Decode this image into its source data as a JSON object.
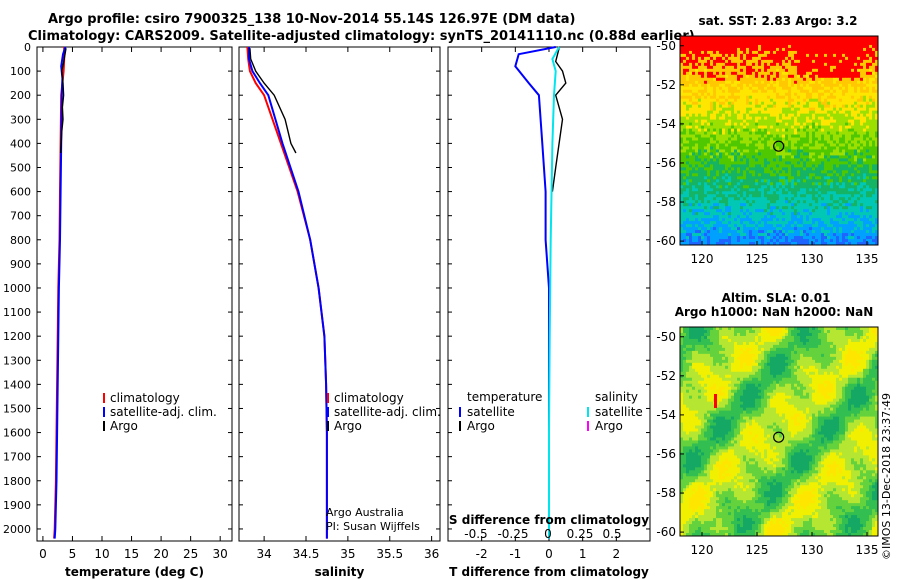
{
  "header": {
    "title_line1": "Argo profile: csiro 7900325_138 10-Nov-2014 55.14S 126.97E (DM data)",
    "title_line2": "Climatology: CARS2009. Satellite-adjusted climatology: synTS_20141110.nc (0.88d earlier)"
  },
  "colors": {
    "climatology": "#ff0000",
    "satellite": "#0000ff",
    "argo": "#000000",
    "satellite_salinity": "#00e5ee",
    "argo_salinity": "#ff00ff"
  },
  "chart_data": [
    {
      "type": "line",
      "panel": "temperature",
      "xlabel": "temperature (deg C)",
      "xlim": [
        -1,
        32
      ],
      "xticks": [
        0,
        5,
        10,
        15,
        20,
        25,
        30
      ],
      "ylim": [
        2050,
        0
      ],
      "yticks": [
        0,
        100,
        200,
        300,
        400,
        500,
        600,
        700,
        800,
        900,
        1000,
        1100,
        1200,
        1300,
        1400,
        1500,
        1600,
        1700,
        1800,
        1900,
        2000
      ],
      "legend": [
        "climatology",
        "satellite-adj. clim.",
        "Argo"
      ],
      "series": [
        {
          "name": "climatology",
          "color": "#ff0000",
          "x": [
            3.6,
            3.6,
            3.5,
            3.3,
            3.1,
            3.0,
            2.9,
            2.8,
            2.6,
            2.5,
            2.4,
            2.3,
            2.2,
            2.1,
            2.0,
            1.9
          ],
          "y": [
            0,
            50,
            100,
            150,
            200,
            400,
            600,
            800,
            1000,
            1200,
            1400,
            1600,
            1800,
            1900,
            2000,
            2040
          ]
        },
        {
          "name": "satellite-adj. clim.",
          "color": "#0000ff",
          "x": [
            3.8,
            3.4,
            3.1,
            3.3,
            3.2,
            3.1,
            3.0,
            2.9,
            2.7,
            2.6,
            2.5,
            2.4,
            2.3,
            2.2,
            2.1,
            2.0
          ],
          "y": [
            0,
            30,
            80,
            130,
            200,
            400,
            600,
            800,
            1000,
            1200,
            1400,
            1600,
            1800,
            1900,
            2000,
            2040
          ]
        },
        {
          "name": "Argo",
          "color": "#000000",
          "x": [
            3.9,
            3.6,
            3.2,
            3.4,
            3.5,
            3.3,
            3.4,
            3.2,
            3.1,
            3.0
          ],
          "y": [
            5,
            50,
            100,
            150,
            200,
            250,
            300,
            350,
            400,
            440
          ]
        }
      ]
    },
    {
      "type": "line",
      "panel": "salinity",
      "xlabel": "salinity",
      "xlim": [
        33.7,
        36.1
      ],
      "xticks": [
        34,
        34.5,
        35,
        35.5,
        36
      ],
      "ylim": [
        2050,
        0
      ],
      "legend": [
        "climatology",
        "satellite-adj. clim.",
        "Argo"
      ],
      "annotations": [
        "Argo Australia",
        "PI: Susan Wijffels"
      ],
      "series": [
        {
          "name": "climatology",
          "color": "#ff0000",
          "x": [
            33.8,
            33.81,
            33.83,
            33.9,
            34.0,
            34.2,
            34.4,
            34.55,
            34.65,
            34.72,
            34.74,
            34.75,
            34.75,
            34.75
          ],
          "y": [
            0,
            50,
            100,
            150,
            200,
            400,
            600,
            800,
            1000,
            1200,
            1400,
            1600,
            1800,
            2040
          ]
        },
        {
          "name": "satellite-adj. clim.",
          "color": "#0000ff",
          "x": [
            33.82,
            33.82,
            33.86,
            33.95,
            34.05,
            34.22,
            34.41,
            34.55,
            34.65,
            34.72,
            34.74,
            34.75,
            34.75,
            34.75
          ],
          "y": [
            0,
            50,
            100,
            150,
            200,
            400,
            600,
            800,
            1000,
            1200,
            1400,
            1600,
            1800,
            2040
          ]
        },
        {
          "name": "Argo",
          "color": "#000000",
          "x": [
            33.83,
            33.84,
            33.9,
            34.0,
            34.12,
            34.25,
            34.32,
            34.38
          ],
          "y": [
            5,
            50,
            100,
            150,
            200,
            300,
            400,
            440
          ]
        }
      ]
    },
    {
      "type": "line",
      "panel": "difference",
      "xlabel": "T difference from climatology",
      "xlabel_top": "S difference from climatology",
      "xlim": [
        -3,
        3
      ],
      "xticks": [
        -2,
        -1,
        0,
        1,
        2
      ],
      "xticklabels_top": [
        "-0.5",
        "-0.25",
        "0",
        "0.25",
        "0.5"
      ],
      "ylim": [
        2050,
        0
      ],
      "legend_left_title": "temperature",
      "legend_left": [
        "satellite",
        "Argo"
      ],
      "legend_right_title": "salinity",
      "legend_right": [
        "satellite",
        "Argo"
      ],
      "series": [
        {
          "name": "temperature satellite",
          "color": "#0000ff",
          "x": [
            0.2,
            -0.9,
            -1.0,
            -0.6,
            -0.3,
            -0.2,
            -0.1,
            -0.1,
            0.0,
            0.0,
            0.0
          ],
          "y": [
            0,
            30,
            80,
            150,
            200,
            400,
            600,
            800,
            1000,
            1500,
            2040
          ]
        },
        {
          "name": "temperature Argo",
          "color": "#000000",
          "x": [
            0.3,
            0.2,
            0.4,
            0.5,
            0.2,
            0.4,
            0.3,
            0.2,
            0.1
          ],
          "y": [
            5,
            60,
            100,
            150,
            200,
            300,
            400,
            500,
            600
          ]
        },
        {
          "name": "salinity satellite",
          "color": "#00e5ee",
          "x": [
            0.3,
            0.1,
            0.2,
            0.15,
            0.1,
            0.05,
            0.02,
            0.0,
            0.0
          ],
          "y": [
            0,
            50,
            100,
            200,
            400,
            800,
            1200,
            1600,
            2040
          ]
        }
      ]
    }
  ],
  "maps": [
    {
      "title": "sat. SST: 2.83 Argo: 3.2",
      "xticks": [
        120,
        125,
        130,
        135
      ],
      "yticks": [
        -50,
        -52,
        -54,
        -56,
        -58,
        -60
      ]
    },
    {
      "title_line1": "Altim. SLA: 0.01",
      "title_line2": "Argo h1000: NaN h2000: NaN",
      "xticks": [
        120,
        125,
        130,
        135
      ],
      "yticks": [
        -50,
        -52,
        -54,
        -56,
        -58,
        -60
      ]
    }
  ],
  "credit": "©IMOS 13-Dec-2018 23:37:49"
}
